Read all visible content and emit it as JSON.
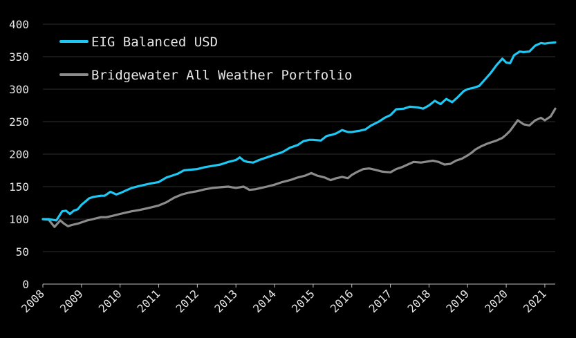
{
  "chart_data": {
    "type": "line",
    "title": "",
    "xlabel": "",
    "ylabel": "",
    "ylim": [
      0,
      400
    ],
    "xlim": [
      2008.0,
      2021.27
    ],
    "yticks": [
      0,
      50,
      100,
      150,
      200,
      250,
      300,
      350,
      400
    ],
    "xticks": [
      "2008",
      "2009",
      "2010",
      "2011",
      "2012",
      "2013",
      "2014",
      "2015",
      "2016",
      "2017",
      "2018",
      "2019",
      "2020",
      "2021"
    ],
    "grid": "horizontal",
    "legend": "top-left",
    "series": [
      {
        "name": "EIG Balanced USD",
        "color": "#1ec8f5",
        "x": [
          2008.0,
          2008.15,
          2008.35,
          2008.5,
          2008.6,
          2008.7,
          2008.8,
          2008.9,
          2009.0,
          2009.1,
          2009.2,
          2009.3,
          2009.4,
          2009.5,
          2009.6,
          2009.75,
          2009.9,
          2010.0,
          2010.15,
          2010.3,
          2010.5,
          2010.65,
          2010.8,
          2011.0,
          2011.2,
          2011.35,
          2011.5,
          2011.65,
          2011.8,
          2012.0,
          2012.2,
          2012.4,
          2012.6,
          2012.8,
          2013.0,
          2013.1,
          2013.2,
          2013.3,
          2013.45,
          2013.6,
          2013.8,
          2014.0,
          2014.2,
          2014.4,
          2014.6,
          2014.75,
          2014.9,
          2015.0,
          2015.2,
          2015.35,
          2015.5,
          2015.6,
          2015.75,
          2015.9,
          2016.0,
          2016.2,
          2016.35,
          2016.5,
          2016.7,
          2016.85,
          2017.0,
          2017.15,
          2017.35,
          2017.5,
          2017.7,
          2017.85,
          2018.0,
          2018.15,
          2018.3,
          2018.45,
          2018.6,
          2018.75,
          2018.9,
          2019.0,
          2019.15,
          2019.3,
          2019.45,
          2019.6,
          2019.75,
          2019.9,
          2020.0,
          2020.1,
          2020.2,
          2020.35,
          2020.45,
          2020.6,
          2020.75,
          2020.9,
          2021.0,
          2021.1,
          2021.27
        ],
        "values": [
          100,
          100,
          98,
          112,
          113,
          108,
          113,
          115,
          122,
          127,
          132,
          134,
          135,
          136,
          136,
          142,
          138,
          140,
          144,
          148,
          151,
          153,
          155,
          157,
          164,
          167,
          170,
          175,
          176,
          177,
          180,
          182,
          184,
          188,
          191,
          195,
          190,
          188,
          187,
          191,
          195,
          199,
          203,
          210,
          214,
          220,
          222,
          222,
          221,
          228,
          230,
          232,
          237,
          234,
          234,
          236,
          238,
          244,
          250,
          256,
          260,
          269,
          270,
          273,
          272,
          270,
          275,
          282,
          277,
          285,
          280,
          288,
          297,
          300,
          302,
          305,
          315,
          325,
          337,
          347,
          341,
          340,
          352,
          358,
          357,
          358,
          367,
          371,
          370,
          371,
          372
        ]
      },
      {
        "name": "Bridgewater All Weather Portfolio",
        "color": "#8c8c8c",
        "x": [
          2008.0,
          2008.15,
          2008.3,
          2008.45,
          2008.55,
          2008.65,
          2008.75,
          2008.9,
          2009.0,
          2009.15,
          2009.3,
          2009.5,
          2009.65,
          2009.8,
          2010.0,
          2010.15,
          2010.3,
          2010.5,
          2010.65,
          2010.8,
          2011.0,
          2011.2,
          2011.4,
          2011.6,
          2011.8,
          2012.0,
          2012.2,
          2012.4,
          2012.6,
          2012.8,
          2013.0,
          2013.2,
          2013.35,
          2013.5,
          2013.65,
          2013.8,
          2014.0,
          2014.2,
          2014.4,
          2014.5,
          2014.6,
          2014.8,
          2014.95,
          2015.1,
          2015.3,
          2015.45,
          2015.6,
          2015.75,
          2015.9,
          2016.0,
          2016.15,
          2016.3,
          2016.45,
          2016.6,
          2016.8,
          2017.0,
          2017.15,
          2017.3,
          2017.45,
          2017.6,
          2017.8,
          2018.0,
          2018.1,
          2018.25,
          2018.4,
          2018.55,
          2018.7,
          2018.85,
          2019.0,
          2019.1,
          2019.2,
          2019.35,
          2019.5,
          2019.6,
          2019.75,
          2019.9,
          2020.0,
          2020.1,
          2020.2,
          2020.3,
          2020.45,
          2020.6,
          2020.75,
          2020.9,
          2021.0,
          2021.15,
          2021.27
        ],
        "values": [
          100,
          99,
          88,
          98,
          93,
          89,
          91,
          93,
          95,
          98,
          100,
          103,
          103,
          105,
          108,
          110,
          112,
          114,
          116,
          118,
          121,
          126,
          133,
          138,
          141,
          143,
          146,
          148,
          149,
          150,
          148,
          150,
          145,
          146,
          148,
          150,
          153,
          157,
          160,
          162,
          164,
          167,
          171,
          167,
          164,
          160,
          163,
          165,
          163,
          168,
          173,
          177,
          178,
          176,
          173,
          172,
          177,
          180,
          184,
          188,
          187,
          189,
          190,
          188,
          184,
          185,
          190,
          193,
          198,
          202,
          207,
          212,
          216,
          218,
          221,
          225,
          230,
          236,
          244,
          252,
          246,
          244,
          252,
          256,
          252,
          258,
          270
        ]
      }
    ]
  }
}
